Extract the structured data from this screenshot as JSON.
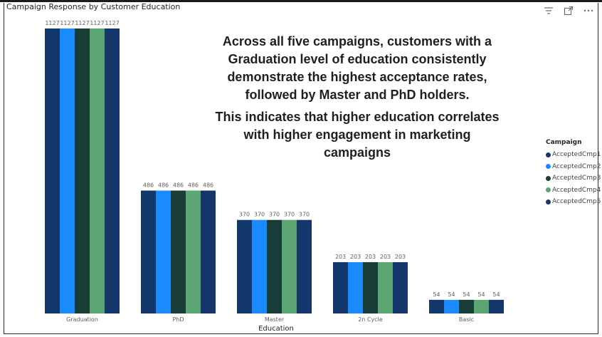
{
  "visual": {
    "title": "Campaign Response by Customer Education",
    "icons": [
      "filter-icon",
      "focus-mode-icon",
      "more-options-icon"
    ]
  },
  "annotation": {
    "paragraph1": "Across all five campaigns, customers with a Graduation level of education consistently demonstrate the highest acceptance rates, followed by Master and PhD holders.",
    "paragraph2": "This indicates that higher education correlates with higher engagement in marketing campaigns"
  },
  "legend": {
    "title": "Campaign"
  },
  "chart_data": {
    "type": "bar",
    "title": "Campaign Response by Customer Education",
    "xlabel": "Education",
    "ylabel": "",
    "categories": [
      "Graduation",
      "PhD",
      "Master",
      "2n Cycle",
      "Basic"
    ],
    "ylim": [
      0,
      1127
    ],
    "grid": false,
    "legend_position": "right",
    "series": [
      {
        "name": "AcceptedCmp1",
        "color": "#12376b",
        "values": [
          1127,
          486,
          370,
          203,
          54
        ]
      },
      {
        "name": "AcceptedCmp2",
        "color": "#1a8bff",
        "values": [
          1127,
          486,
          370,
          203,
          54
        ]
      },
      {
        "name": "AcceptedCmp3",
        "color": "#173d36",
        "values": [
          1127,
          486,
          370,
          203,
          54
        ]
      },
      {
        "name": "AcceptedCmp4",
        "color": "#5aa571",
        "values": [
          1127,
          486,
          370,
          203,
          54
        ]
      },
      {
        "name": "AcceptedCmp5",
        "color": "#14366a",
        "values": [
          1127,
          486,
          370,
          203,
          54
        ]
      }
    ]
  }
}
